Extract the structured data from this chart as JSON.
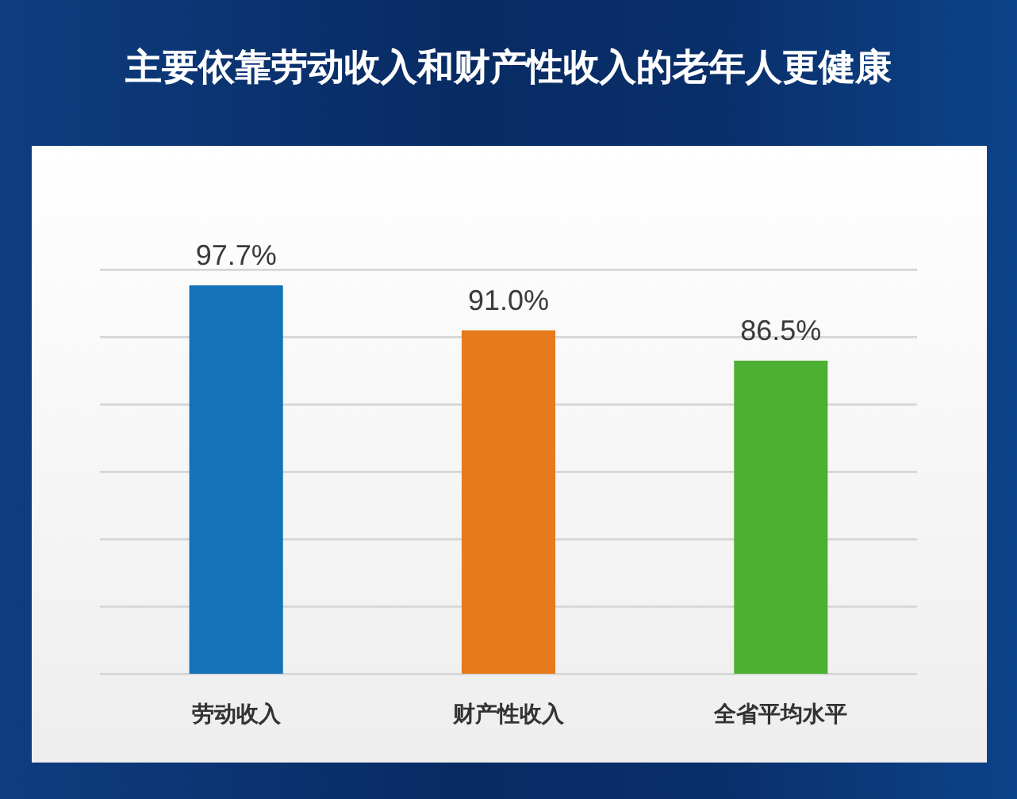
{
  "chart_data": {
    "type": "bar",
    "title": "主要依靠劳动收入和财产性收入的老年人更健康",
    "categories": [
      "劳动收入",
      "财产性收入",
      "全省平均水平"
    ],
    "values": [
      97.7,
      91.0,
      86.5
    ],
    "colors": [
      "#1372b8",
      "#e67a1c",
      "#4cb032"
    ],
    "value_labels": [
      "97.7%",
      "91.0%",
      "86.5%"
    ],
    "ylim": [
      40,
      100
    ],
    "yticks": [
      {
        "value": 40,
        "label": null
      },
      {
        "value": 50,
        "label": null
      },
      {
        "value": 60,
        "label": null
      },
      {
        "value": 70,
        "label": null
      },
      {
        "value": 80,
        "label": null
      },
      {
        "value": 90,
        "label": null
      },
      {
        "value": 100,
        "label": null
      }
    ],
    "grid": "y",
    "tick_labels": "x",
    "legend": false
  }
}
